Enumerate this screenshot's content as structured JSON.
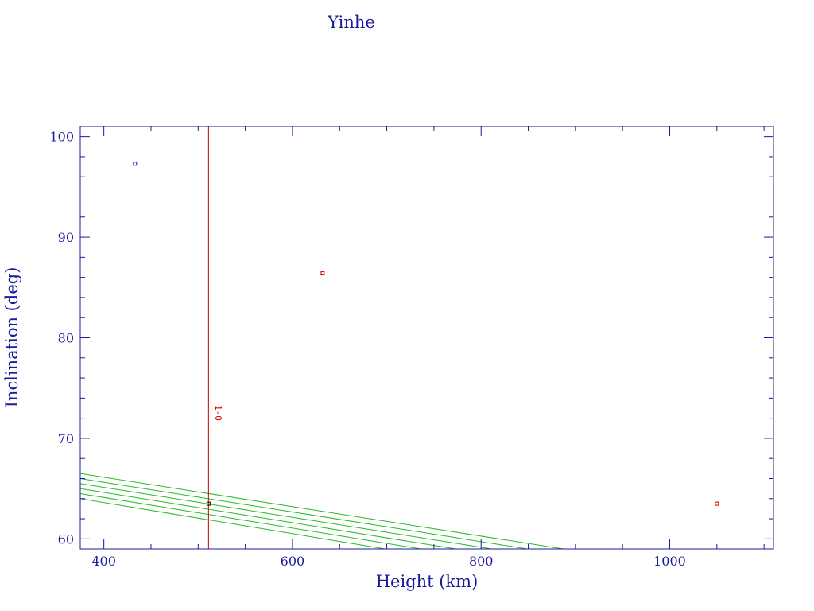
{
  "chart_data": {
    "type": "scatter",
    "title": "Yinhe",
    "xlabel": "Height (km)",
    "ylabel": "Inclination (deg)",
    "xlim": [
      375,
      1110
    ],
    "ylim": [
      59,
      101
    ],
    "xticks": [
      400,
      600,
      800,
      1000
    ],
    "yticks": [
      60,
      70,
      80,
      90,
      100
    ],
    "grid": false,
    "colors": {
      "axes": "#1a1a9c",
      "text": "#1a1a9c",
      "marker_red": "#cc0000",
      "marker_blue": "#1a1a9c",
      "marker_black": "#000000",
      "vline": "#cc0000",
      "curves": "#22bb22"
    },
    "points": [
      {
        "x": 433,
        "y": 97.3,
        "color": "#1a1a9c"
      },
      {
        "x": 632,
        "y": 86.4,
        "color": "#cc0000"
      },
      {
        "x": 1050,
        "y": 63.5,
        "color": "#cc0000"
      },
      {
        "x": 511,
        "y": 63.5,
        "color": "#000000"
      }
    ],
    "vline": {
      "x": 511,
      "label": "1-0"
    },
    "curves": [
      {
        "x": [
          375,
          887
        ],
        "y": [
          66.5,
          59
        ]
      },
      {
        "x": [
          375,
          849
        ],
        "y": [
          66.0,
          59
        ]
      },
      {
        "x": [
          375,
          811
        ],
        "y": [
          65.5,
          59
        ]
      },
      {
        "x": [
          375,
          773
        ],
        "y": [
          65.0,
          59
        ]
      },
      {
        "x": [
          375,
          736
        ],
        "y": [
          64.5,
          59
        ]
      },
      {
        "x": [
          375,
          698
        ],
        "y": [
          64.0,
          59
        ]
      }
    ]
  }
}
